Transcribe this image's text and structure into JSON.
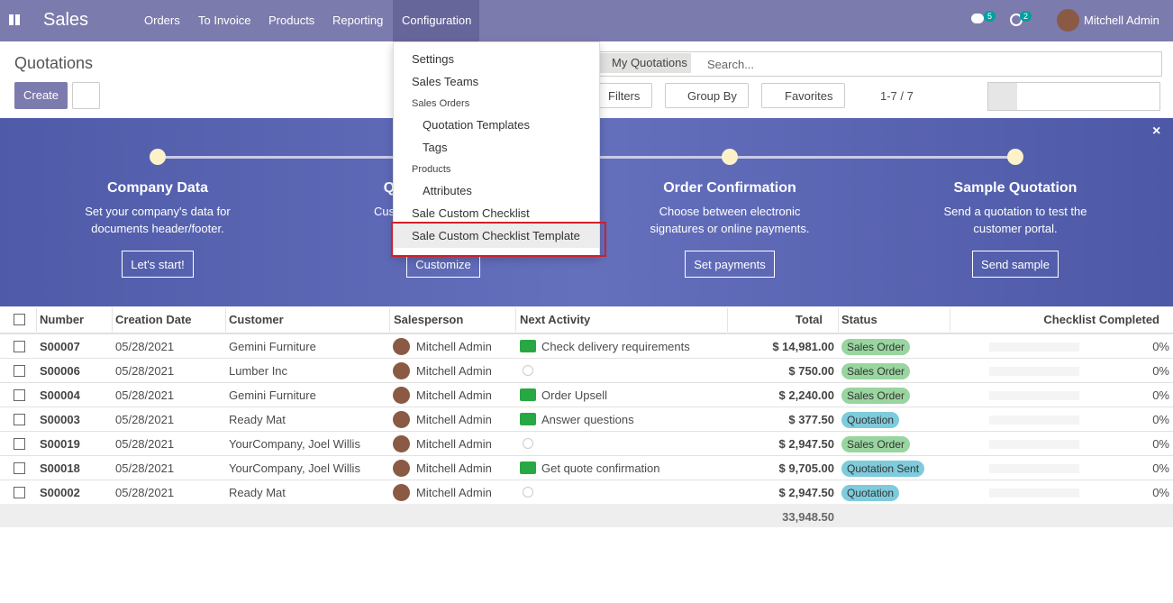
{
  "navbar": {
    "app": "Sales",
    "menu": [
      "Orders",
      "To Invoice",
      "Products",
      "Reporting",
      "Configuration"
    ],
    "messages_count": "5",
    "activities_count": "2",
    "user": "Mitchell Admin"
  },
  "control_panel": {
    "title": "Quotations",
    "create": "Create",
    "facet": "My Quotations",
    "search_placeholder": "Search...",
    "filters": "Filters",
    "group_by": "Group By",
    "favorites": "Favorites",
    "pager": "1-7 / 7"
  },
  "dropdown": {
    "items": [
      {
        "label": "Settings",
        "kind": "item"
      },
      {
        "label": "Sales Teams",
        "kind": "item"
      },
      {
        "label": "Sales Orders",
        "kind": "header"
      },
      {
        "label": "Quotation Templates",
        "kind": "sub"
      },
      {
        "label": "Tags",
        "kind": "sub"
      },
      {
        "label": "Products",
        "kind": "header"
      },
      {
        "label": "Attributes",
        "kind": "sub"
      },
      {
        "label": "Sale Custom Checklist",
        "kind": "item"
      },
      {
        "label": "Sale Custom Checklist Template",
        "kind": "selected"
      }
    ]
  },
  "onboarding": {
    "steps": [
      {
        "title": "Company Data",
        "description": "Set your company's data for documents header/footer.",
        "button": "Let's start!"
      },
      {
        "title": "Quotation Layout",
        "description": "Customize the look of your quotations.",
        "button": "Customize"
      },
      {
        "title": "Order Confirmation",
        "description": "Choose between electronic signatures or online payments.",
        "button": "Set payments"
      },
      {
        "title": "Sample Quotation",
        "description": "Send a quotation to test the customer portal.",
        "button": "Send sample"
      }
    ]
  },
  "table": {
    "headers": [
      "Number",
      "Creation Date",
      "Customer",
      "Salesperson",
      "Next Activity",
      "Total",
      "Status",
      "Checklist Completed"
    ],
    "rows": [
      {
        "number": "S00007",
        "date": "05/28/2021",
        "customer": "Gemini Furniture",
        "salesperson": "Mitchell Admin",
        "activity": "Check delivery requirements",
        "total": "$ 14,981.00",
        "status": "Sales Order",
        "status_color": "#98d59f",
        "checklist": "0%"
      },
      {
        "number": "S00006",
        "date": "05/28/2021",
        "customer": "Lumber Inc",
        "salesperson": "Mitchell Admin",
        "activity": null,
        "total": "$ 750.00",
        "status": "Sales Order",
        "status_color": "#98d59f",
        "checklist": "0%"
      },
      {
        "number": "S00004",
        "date": "05/28/2021",
        "customer": "Gemini Furniture",
        "salesperson": "Mitchell Admin",
        "activity": "Order Upsell",
        "total": "$ 2,240.00",
        "status": "Sales Order",
        "status_color": "#98d59f",
        "checklist": "0%"
      },
      {
        "number": "S00003",
        "date": "05/28/2021",
        "customer": "Ready Mat",
        "salesperson": "Mitchell Admin",
        "activity": "Answer questions",
        "total": "$ 377.50",
        "status": "Quotation",
        "status_color": "#7ecbdc",
        "checklist": "0%"
      },
      {
        "number": "S00019",
        "date": "05/28/2021",
        "customer": "YourCompany, Joel Willis",
        "salesperson": "Mitchell Admin",
        "activity": null,
        "total": "$ 2,947.50",
        "status": "Sales Order",
        "status_color": "#98d59f",
        "checklist": "0%"
      },
      {
        "number": "S00018",
        "date": "05/28/2021",
        "customer": "YourCompany, Joel Willis",
        "salesperson": "Mitchell Admin",
        "activity": "Get quote confirmation",
        "total": "$ 9,705.00",
        "status": "Quotation Sent",
        "status_color": "#7ecbdc",
        "checklist": "0%"
      },
      {
        "number": "S00002",
        "date": "05/28/2021",
        "customer": "Ready Mat",
        "salesperson": "Mitchell Admin",
        "activity": null,
        "total": "$ 2,947.50",
        "status": "Quotation",
        "status_color": "#7ecbdc",
        "checklist": "0%"
      }
    ],
    "footer_total": "33,948.50"
  }
}
